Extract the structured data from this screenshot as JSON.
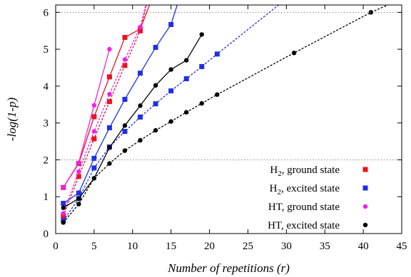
{
  "chart_data": {
    "type": "line",
    "xlabel": "Number of repetitions (r)",
    "ylabel": "-log(1-p)",
    "xlim": [
      0,
      45
    ],
    "ylim": [
      0,
      6.2
    ],
    "xticks": [
      0,
      5,
      10,
      15,
      20,
      25,
      30,
      35,
      40,
      45
    ],
    "yticks": [
      0,
      1,
      2,
      3,
      4,
      5,
      6
    ],
    "reference_lines": [
      2,
      6
    ],
    "grid": false,
    "legend_position": "bottom-right",
    "series": [
      {
        "name": "H2, ground state",
        "legend_main": "H",
        "legend_sub": "2",
        "legend_rest": ", ground state",
        "color": "#e8141f",
        "marker": "square",
        "solid": {
          "x": [
            1,
            3,
            5,
            7,
            9,
            11
          ],
          "y": [
            1.25,
            1.9,
            3.17,
            4.25,
            5.32,
            5.55
          ],
          "extend_to": [
            12.2,
            6.2
          ]
        },
        "dashed": {
          "x": [
            1,
            3,
            5,
            7,
            9,
            11
          ],
          "y": [
            0.48,
            1.55,
            2.57,
            3.58,
            4.56,
            5.5
          ],
          "extend_to": [
            11.8,
            6.2
          ]
        }
      },
      {
        "name": "H2, excited state",
        "legend_main": "H",
        "legend_sub": "2",
        "legend_rest": ", excited state",
        "color": "#1f2fe6",
        "marker": "square",
        "solid": {
          "x": [
            1,
            3,
            5,
            7,
            9,
            11,
            13,
            15
          ],
          "y": [
            0.82,
            1.1,
            2.04,
            2.87,
            3.64,
            4.35,
            5.05,
            5.67
          ],
          "extend_to": [
            15.8,
            6.2
          ]
        },
        "dashed": {
          "x": [
            1,
            3,
            5,
            7,
            9,
            11,
            13,
            15,
            17,
            19,
            21
          ],
          "y": [
            0.35,
            0.95,
            1.78,
            2.35,
            2.77,
            3.16,
            3.52,
            3.87,
            4.2,
            4.53,
            4.87
          ],
          "extend_to": [
            29,
            6.2
          ]
        }
      },
      {
        "name": "HT, ground state",
        "legend_main": "HT",
        "legend_sub": "",
        "legend_rest": ", ground state",
        "color": "#f020ec",
        "marker": "circle",
        "solid": {
          "x": [
            1,
            3,
            5,
            7
          ],
          "y": [
            1.25,
            1.92,
            3.48,
            5.0
          ]
        },
        "dashed": {
          "x": [
            1,
            3,
            5,
            7,
            9,
            11
          ],
          "y": [
            0.55,
            1.68,
            2.77,
            3.78,
            4.72,
            5.6
          ],
          "extend_to": [
            11.7,
            6.2
          ]
        }
      },
      {
        "name": "HT, excited state",
        "legend_main": "HT",
        "legend_sub": "",
        "legend_rest": ", excited state",
        "color": "#000000",
        "marker": "circle",
        "solid": {
          "x": [
            1,
            3,
            5,
            7,
            9,
            11,
            13,
            15,
            17,
            19
          ],
          "y": [
            0.7,
            0.95,
            1.5,
            2.33,
            2.93,
            3.47,
            4.02,
            4.45,
            4.7,
            5.4
          ]
        },
        "dashed": {
          "x": [
            1,
            3,
            5,
            7,
            9,
            11,
            13,
            15,
            17,
            19,
            21,
            31,
            41
          ],
          "y": [
            0.3,
            0.8,
            1.5,
            1.9,
            2.25,
            2.53,
            2.8,
            3.04,
            3.29,
            3.53,
            3.77,
            4.9,
            6.0
          ],
          "extend_to": [
            43.2,
            6.2
          ]
        }
      }
    ]
  }
}
